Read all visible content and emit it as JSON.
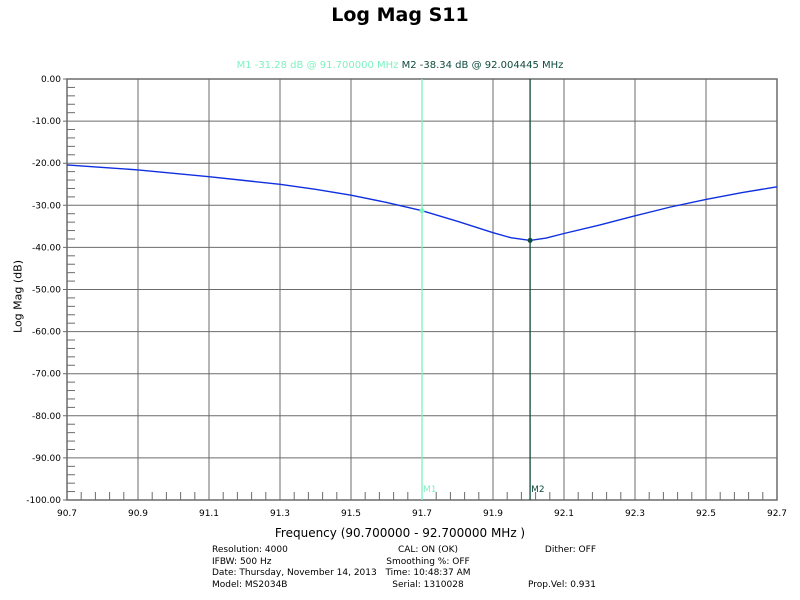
{
  "title": "Log Mag S11",
  "markers": {
    "m1": {
      "label": "M1",
      "text": "M1  -31.28 dB @ 91.700000 MHz",
      "value_db": -31.28,
      "freq_mhz": 91.7,
      "color": "#7df2c0"
    },
    "m2": {
      "label": "M2",
      "text": "M2  -38.34 dB @ 92.004445 MHz",
      "value_db": -38.34,
      "freq_mhz": 92.004445,
      "color": "#0f4a3c"
    }
  },
  "axes": {
    "xlabel": "Frequency (90.700000 - 92.700000 MHz )",
    "ylabel": "Log Mag (dB)"
  },
  "info": {
    "resolution": "Resolution: 4000",
    "ifbw": "IFBW: 500 Hz",
    "date": "Date: Thursday, November 14, 2013",
    "model": "Model: MS2034B",
    "cal": "CAL: ON (OK)",
    "smoothing": "Smoothing %:  OFF",
    "time": "Time: 10:48:37 AM",
    "serial": "Serial: 1310028",
    "dither": "Dither:  OFF",
    "propvel": "Prop.Vel: 0.931"
  },
  "chart_data": {
    "type": "line",
    "title": "Log Mag S11",
    "xlabel": "Frequency (90.700000 - 92.700000 MHz )",
    "ylabel": "Log Mag (dB)",
    "xlim": [
      90.7,
      92.7
    ],
    "ylim": [
      -100,
      0
    ],
    "grid": true,
    "x_ticks": [
      "90.7",
      "90.9",
      "91.1",
      "91.3",
      "91.5",
      "91.7",
      "91.9",
      "92.1",
      "92.3",
      "92.5",
      "92.7"
    ],
    "y_ticks": [
      "0.00",
      "-10.00",
      "-20.00",
      "-30.00",
      "-40.00",
      "-50.00",
      "-60.00",
      "-70.00",
      "-80.00",
      "-90.00",
      "-100.00"
    ],
    "series": [
      {
        "name": "S11",
        "color": "#1030e0",
        "x": [
          90.7,
          90.8,
          90.9,
          91.0,
          91.1,
          91.2,
          91.3,
          91.4,
          91.5,
          91.6,
          91.7,
          91.8,
          91.9,
          91.95,
          92.004445,
          92.05,
          92.1,
          92.2,
          92.3,
          92.4,
          92.5,
          92.6,
          92.7
        ],
        "values": [
          -20.4,
          -21.0,
          -21.6,
          -22.4,
          -23.2,
          -24.1,
          -25.0,
          -26.2,
          -27.6,
          -29.3,
          -31.28,
          -33.8,
          -36.5,
          -37.7,
          -38.34,
          -37.8,
          -36.7,
          -34.7,
          -32.5,
          -30.4,
          -28.6,
          -27.0,
          -25.6
        ]
      }
    ],
    "markers": [
      {
        "name": "M1",
        "x": 91.7,
        "y": -31.28
      },
      {
        "name": "M2",
        "x": 92.004445,
        "y": -38.34
      }
    ]
  }
}
